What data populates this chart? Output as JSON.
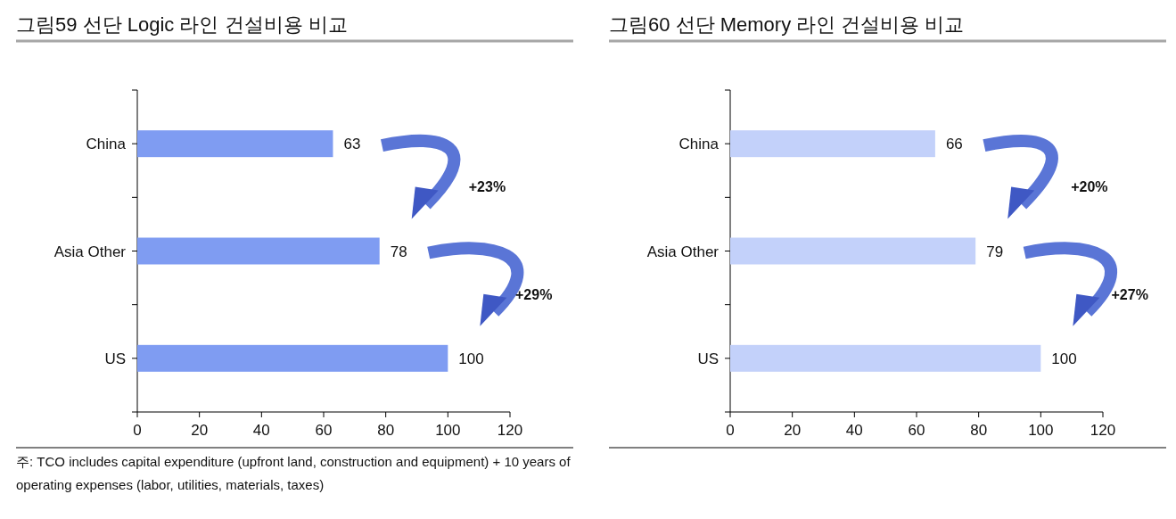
{
  "chart_data": [
    {
      "type": "bar",
      "orientation": "horizontal",
      "title": "그림59 선단 Logic 라인 건설비용 비교",
      "categories": [
        "China",
        "Asia Other",
        "US"
      ],
      "values": [
        63,
        78,
        100
      ],
      "color": "#7f9cf2",
      "xlim": [
        0,
        120
      ],
      "xticks": [
        0,
        20,
        40,
        60,
        80,
        100,
        120
      ],
      "data_labels": true,
      "annotations": [
        "+23%",
        "+29%",
        "주: TCO includes capital expenditure (upfront land, construction and equipment) + 10 years of operating expenses (labor, utilities, materials, taxes)"
      ]
    },
    {
      "type": "bar",
      "orientation": "horizontal",
      "title": "그림60 선단 Memory 라인 건설비용 비교",
      "categories": [
        "China",
        "Asia Other",
        "US"
      ],
      "values": [
        66,
        79,
        100
      ],
      "color": "#c3d1fa",
      "xlim": [
        0,
        120
      ],
      "xticks": [
        0,
        20,
        40,
        60,
        80,
        100,
        120
      ],
      "data_labels": true,
      "annotations": [
        "+20%",
        "+27%"
      ]
    }
  ]
}
